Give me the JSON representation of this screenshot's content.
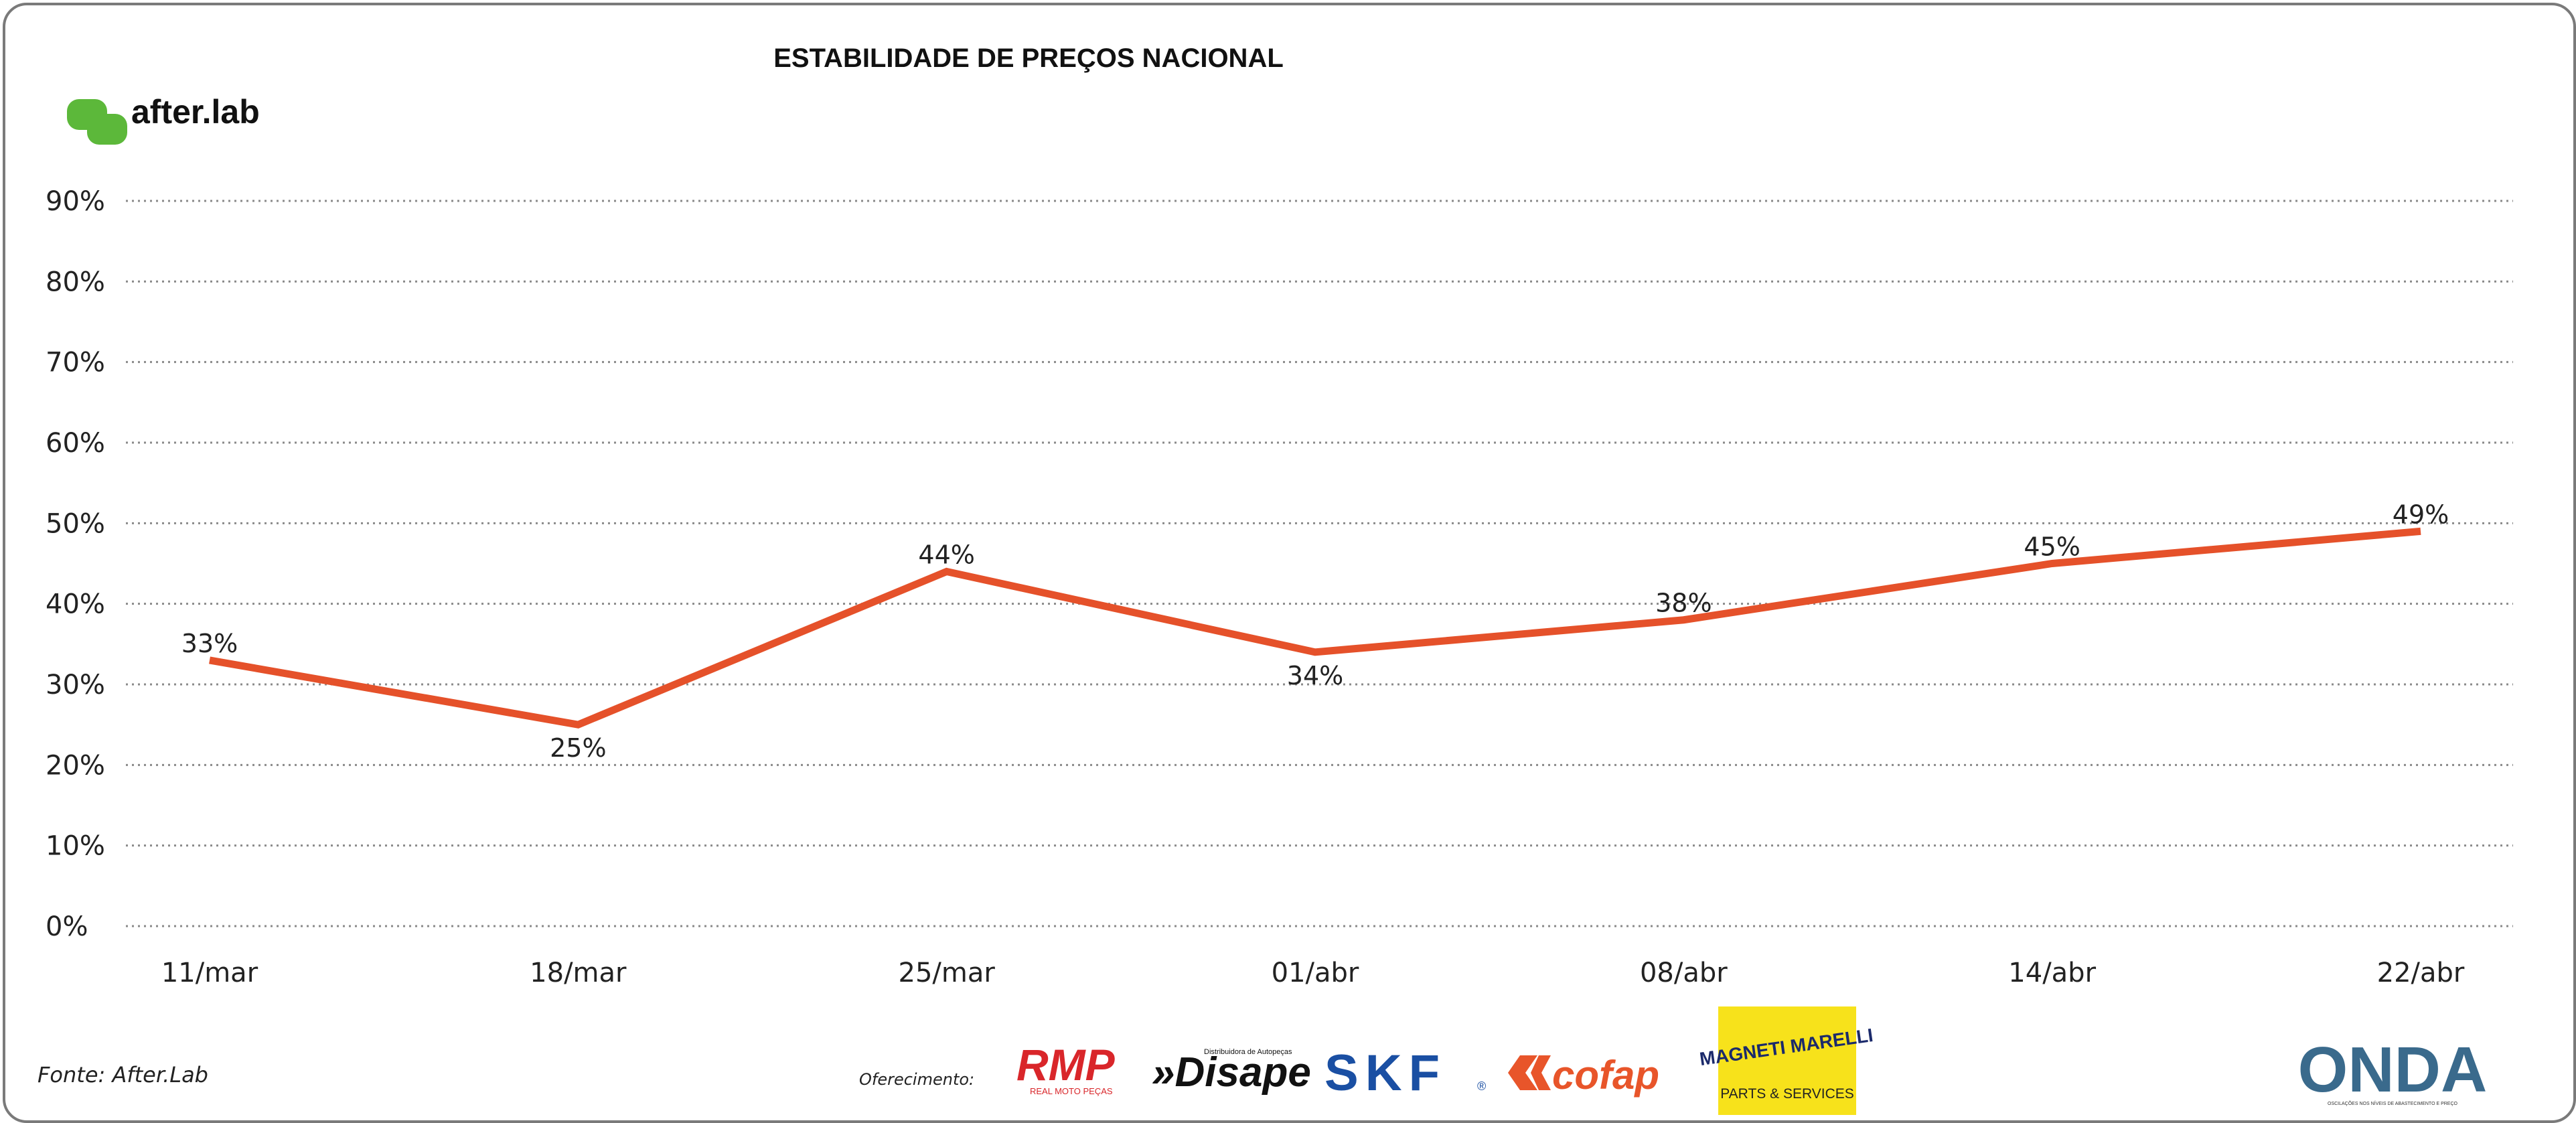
{
  "brand": {
    "name": "after.lab",
    "color": "#5cb83a"
  },
  "footer": {
    "source": "Fonte: After.Lab",
    "sponsor_label": "Oferecimento:"
  },
  "sponsors": [
    {
      "name": "RMP",
      "sub": "REAL MOTO PEÇAS",
      "color": "#d9262a"
    },
    {
      "name": "»Disape",
      "sub": "Distribuidora de Autopeças",
      "color": "#111111"
    },
    {
      "name": "SKF",
      "mark": "®",
      "color": "#1a4fa3"
    },
    {
      "name": "cofap",
      "color": "#e8552a"
    },
    {
      "name": "MAGNETI MARELLI",
      "sub": "PARTS & SERVICES",
      "color": "#f7e21b"
    },
    {
      "name": "ONDA",
      "sub": "OSCILAÇÕES NOS NÍVEIS DE ABASTECIMENTO E PREÇO",
      "color": "#3a6a8c"
    }
  ],
  "chart_data": {
    "type": "line",
    "title": "ESTABILIDADE DE PREÇOS NACIONAL",
    "categories": [
      "11/mar",
      "18/mar",
      "25/mar",
      "01/abr",
      "08/abr",
      "14/abr",
      "22/abr"
    ],
    "series": [
      {
        "values": [
          33,
          25,
          44,
          34,
          38,
          45,
          49
        ],
        "labels": [
          "33%",
          "25%",
          "44%",
          "34%",
          "38%",
          "45%",
          "49%"
        ],
        "color": "#e5512a"
      }
    ],
    "ylim": [
      0,
      90
    ],
    "yticks": [
      0,
      10,
      20,
      30,
      40,
      50,
      60,
      70,
      80,
      90
    ],
    "ytick_labels": [
      "0%",
      "10%",
      "20%",
      "30%",
      "40%",
      "50%",
      "60%",
      "70%",
      "80%",
      "90%"
    ],
    "grid": true,
    "grid_style": "dotted",
    "legend": "none"
  }
}
